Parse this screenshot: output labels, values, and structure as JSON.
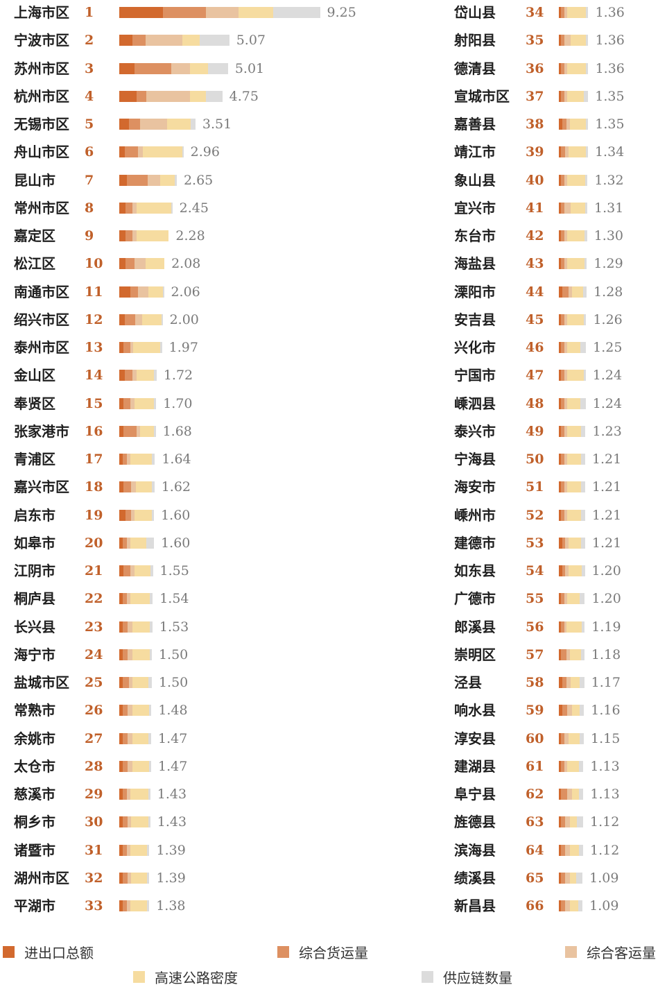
{
  "chart_data": {
    "type": "bar",
    "orientation": "horizontal",
    "stacked": true,
    "legend_position": "bottom",
    "series": [
      {
        "name": "进出口总额",
        "color": "#d2692e"
      },
      {
        "name": "综合货运量",
        "color": "#dd9061"
      },
      {
        "name": "综合客运量",
        "color": "#e9c3a0"
      },
      {
        "name": "高速公路密度",
        "color": "#f6dca0"
      },
      {
        "name": "供应链数量",
        "color": "#dcdcdc"
      }
    ],
    "rows": [
      {
        "rank": "1",
        "name": "上海市区",
        "total": "9.25",
        "parts": [
          2.0,
          2.0,
          1.5,
          1.6,
          2.15
        ]
      },
      {
        "rank": "2",
        "name": "宁波市区",
        "total": "5.07",
        "parts": [
          0.6,
          0.6,
          1.7,
          0.8,
          1.37
        ]
      },
      {
        "rank": "3",
        "name": "苏州市区",
        "total": "5.01",
        "parts": [
          0.7,
          1.7,
          0.85,
          0.85,
          0.91
        ]
      },
      {
        "rank": "4",
        "name": "杭州市区",
        "total": "4.75",
        "parts": [
          0.8,
          0.45,
          2.0,
          0.75,
          0.75
        ]
      },
      {
        "rank": "5",
        "name": "无锡市区",
        "total": "3.51",
        "parts": [
          0.45,
          0.5,
          1.25,
          1.1,
          0.21
        ]
      },
      {
        "rank": "6",
        "name": "舟山市区",
        "total": "2.96",
        "parts": [
          0.25,
          0.6,
          0.25,
          1.8,
          0.06
        ]
      },
      {
        "rank": "7",
        "name": "昆山市",
        "total": "2.65",
        "parts": [
          0.35,
          0.95,
          0.6,
          0.65,
          0.1
        ]
      },
      {
        "rank": "8",
        "name": "常州市区",
        "total": "2.45",
        "parts": [
          0.3,
          0.3,
          0.2,
          1.6,
          0.05
        ]
      },
      {
        "rank": "9",
        "name": "嘉定区",
        "total": "2.28",
        "parts": [
          0.3,
          0.3,
          0.2,
          1.48,
          0.0
        ]
      },
      {
        "rank": "10",
        "name": "松江区",
        "total": "2.08",
        "parts": [
          0.3,
          0.4,
          0.5,
          0.88,
          0.0
        ]
      },
      {
        "rank": "11",
        "name": "南通市区",
        "total": "2.06",
        "parts": [
          0.5,
          0.35,
          0.5,
          0.65,
          0.06
        ]
      },
      {
        "rank": "12",
        "name": "绍兴市区",
        "total": "2.00",
        "parts": [
          0.25,
          0.5,
          0.3,
          0.9,
          0.05
        ]
      },
      {
        "rank": "13",
        "name": "泰州市区",
        "total": "1.97",
        "parts": [
          0.2,
          0.3,
          0.15,
          1.25,
          0.07
        ]
      },
      {
        "rank": "14",
        "name": "金山区",
        "total": "1.72",
        "parts": [
          0.25,
          0.35,
          0.2,
          0.8,
          0.12
        ]
      },
      {
        "rank": "15",
        "name": "奉贤区",
        "total": "1.70",
        "parts": [
          0.2,
          0.3,
          0.2,
          0.9,
          0.1
        ]
      },
      {
        "rank": "16",
        "name": "张家港市",
        "total": "1.68",
        "parts": [
          0.2,
          0.6,
          0.15,
          0.65,
          0.08
        ]
      },
      {
        "rank": "17",
        "name": "青浦区",
        "total": "1.64",
        "parts": [
          0.15,
          0.2,
          0.15,
          1.0,
          0.14
        ]
      },
      {
        "rank": "18",
        "name": "嘉兴市区",
        "total": "1.62",
        "parts": [
          0.2,
          0.35,
          0.2,
          0.75,
          0.12
        ]
      },
      {
        "rank": "19",
        "name": "启东市",
        "total": "1.60",
        "parts": [
          0.3,
          0.25,
          0.15,
          0.8,
          0.1
        ]
      },
      {
        "rank": "20",
        "name": "如皋市",
        "total": "1.60",
        "parts": [
          0.15,
          0.2,
          0.15,
          0.75,
          0.35
        ]
      },
      {
        "rank": "21",
        "name": "江阴市",
        "total": "1.55",
        "parts": [
          0.2,
          0.3,
          0.2,
          0.75,
          0.1
        ]
      },
      {
        "rank": "22",
        "name": "桐庐县",
        "total": "1.54",
        "parts": [
          0.15,
          0.2,
          0.15,
          0.9,
          0.14
        ]
      },
      {
        "rank": "23",
        "name": "长兴县",
        "total": "1.53",
        "parts": [
          0.15,
          0.25,
          0.2,
          0.8,
          0.13
        ]
      },
      {
        "rank": "24",
        "name": "海宁市",
        "total": "1.50",
        "parts": [
          0.15,
          0.25,
          0.2,
          0.8,
          0.1
        ]
      },
      {
        "rank": "25",
        "name": "盐城市区",
        "total": "1.50",
        "parts": [
          0.15,
          0.3,
          0.15,
          0.75,
          0.15
        ]
      },
      {
        "rank": "26",
        "name": "常熟市",
        "total": "1.48",
        "parts": [
          0.15,
          0.25,
          0.2,
          0.78,
          0.1
        ]
      },
      {
        "rank": "27",
        "name": "余姚市",
        "total": "1.47",
        "parts": [
          0.15,
          0.25,
          0.2,
          0.75,
          0.12
        ]
      },
      {
        "rank": "28",
        "name": "太仓市",
        "total": "1.47",
        "parts": [
          0.15,
          0.25,
          0.2,
          0.77,
          0.1
        ]
      },
      {
        "rank": "29",
        "name": "慈溪市",
        "total": "1.43",
        "parts": [
          0.15,
          0.2,
          0.15,
          0.85,
          0.08
        ]
      },
      {
        "rank": "30",
        "name": "桐乡市",
        "total": "1.43",
        "parts": [
          0.15,
          0.25,
          0.15,
          0.78,
          0.1
        ]
      },
      {
        "rank": "31",
        "name": "诸暨市",
        "total": "1.39",
        "parts": [
          0.15,
          0.2,
          0.15,
          0.79,
          0.1
        ]
      },
      {
        "rank": "32",
        "name": "湖州市区",
        "total": "1.39",
        "parts": [
          0.15,
          0.25,
          0.15,
          0.74,
          0.1
        ]
      },
      {
        "rank": "33",
        "name": "平湖市",
        "total": "1.38",
        "parts": [
          0.15,
          0.2,
          0.15,
          0.78,
          0.1
        ]
      },
      {
        "rank": "34",
        "name": "岱山县",
        "total": "1.36",
        "parts": [
          0.1,
          0.15,
          0.15,
          0.86,
          0.1
        ]
      },
      {
        "rank": "35",
        "name": "射阳县",
        "total": "1.36",
        "parts": [
          0.1,
          0.15,
          0.3,
          0.71,
          0.1
        ]
      },
      {
        "rank": "36",
        "name": "德清县",
        "total": "1.36",
        "parts": [
          0.1,
          0.15,
          0.15,
          0.86,
          0.1
        ]
      },
      {
        "rank": "37",
        "name": "宣城市区",
        "total": "1.35",
        "parts": [
          0.1,
          0.15,
          0.15,
          0.75,
          0.2
        ]
      },
      {
        "rank": "38",
        "name": "嘉善县",
        "total": "1.35",
        "parts": [
          0.15,
          0.2,
          0.15,
          0.75,
          0.1
        ]
      },
      {
        "rank": "39",
        "name": "靖江市",
        "total": "1.34",
        "parts": [
          0.1,
          0.2,
          0.15,
          0.79,
          0.1
        ]
      },
      {
        "rank": "40",
        "name": "象山县",
        "total": "1.32",
        "parts": [
          0.1,
          0.15,
          0.15,
          0.82,
          0.1
        ]
      },
      {
        "rank": "41",
        "name": "宜兴市",
        "total": "1.31",
        "parts": [
          0.1,
          0.15,
          0.3,
          0.66,
          0.1
        ]
      },
      {
        "rank": "42",
        "name": "东台市",
        "total": "1.30",
        "parts": [
          0.1,
          0.15,
          0.15,
          0.8,
          0.1
        ]
      },
      {
        "rank": "43",
        "name": "海盐县",
        "total": "1.29",
        "parts": [
          0.1,
          0.15,
          0.15,
          0.79,
          0.1
        ]
      },
      {
        "rank": "44",
        "name": "溧阳市",
        "total": "1.28",
        "parts": [
          0.15,
          0.3,
          0.15,
          0.53,
          0.15
        ]
      },
      {
        "rank": "45",
        "name": "安吉县",
        "total": "1.26",
        "parts": [
          0.1,
          0.15,
          0.15,
          0.76,
          0.1
        ]
      },
      {
        "rank": "46",
        "name": "兴化市",
        "total": "1.25",
        "parts": [
          0.1,
          0.15,
          0.15,
          0.6,
          0.25
        ]
      },
      {
        "rank": "47",
        "name": "宁国市",
        "total": "1.24",
        "parts": [
          0.1,
          0.15,
          0.15,
          0.74,
          0.1
        ]
      },
      {
        "rank": "48",
        "name": "嵊泗县",
        "total": "1.24",
        "parts": [
          0.1,
          0.15,
          0.15,
          0.59,
          0.25
        ]
      },
      {
        "rank": "49",
        "name": "泰兴市",
        "total": "1.23",
        "parts": [
          0.1,
          0.15,
          0.15,
          0.63,
          0.2
        ]
      },
      {
        "rank": "50",
        "name": "宁海县",
        "total": "1.21",
        "parts": [
          0.1,
          0.15,
          0.15,
          0.61,
          0.2
        ]
      },
      {
        "rank": "51",
        "name": "海安市",
        "total": "1.21",
        "parts": [
          0.1,
          0.15,
          0.15,
          0.61,
          0.2
        ]
      },
      {
        "rank": "52",
        "name": "嵊州市",
        "total": "1.21",
        "parts": [
          0.1,
          0.15,
          0.15,
          0.61,
          0.2
        ]
      },
      {
        "rank": "53",
        "name": "建德市",
        "total": "1.21",
        "parts": [
          0.15,
          0.15,
          0.15,
          0.56,
          0.2
        ]
      },
      {
        "rank": "54",
        "name": "如东县",
        "total": "1.20",
        "parts": [
          0.15,
          0.15,
          0.15,
          0.6,
          0.15
        ]
      },
      {
        "rank": "55",
        "name": "广德市",
        "total": "1.20",
        "parts": [
          0.1,
          0.15,
          0.15,
          0.55,
          0.25
        ]
      },
      {
        "rank": "56",
        "name": "郎溪县",
        "total": "1.19",
        "parts": [
          0.1,
          0.15,
          0.1,
          0.7,
          0.14
        ]
      },
      {
        "rank": "57",
        "name": "崇明区",
        "total": "1.18",
        "parts": [
          0.1,
          0.25,
          0.15,
          0.53,
          0.15
        ]
      },
      {
        "rank": "58",
        "name": "泾县",
        "total": "1.17",
        "parts": [
          0.15,
          0.2,
          0.2,
          0.42,
          0.2
        ]
      },
      {
        "rank": "59",
        "name": "响水县",
        "total": "1.16",
        "parts": [
          0.15,
          0.25,
          0.2,
          0.36,
          0.2
        ]
      },
      {
        "rank": "60",
        "name": "淳安县",
        "total": "1.15",
        "parts": [
          0.1,
          0.15,
          0.2,
          0.5,
          0.2
        ]
      },
      {
        "rank": "61",
        "name": "建湖县",
        "total": "1.13",
        "parts": [
          0.1,
          0.15,
          0.15,
          0.53,
          0.2
        ]
      },
      {
        "rank": "62",
        "name": "阜宁县",
        "total": "1.13",
        "parts": [
          0.1,
          0.3,
          0.2,
          0.33,
          0.2
        ]
      },
      {
        "rank": "63",
        "name": "旌德县",
        "total": "1.12",
        "parts": [
          0.1,
          0.2,
          0.2,
          0.32,
          0.3
        ]
      },
      {
        "rank": "64",
        "name": "滨海县",
        "total": "1.12",
        "parts": [
          0.1,
          0.2,
          0.2,
          0.42,
          0.2
        ]
      },
      {
        "rank": "65",
        "name": "绩溪县",
        "total": "1.09",
        "parts": [
          0.1,
          0.2,
          0.2,
          0.29,
          0.3
        ]
      },
      {
        "rank": "66",
        "name": "新昌县",
        "total": "1.09",
        "parts": [
          0.1,
          0.2,
          0.2,
          0.39,
          0.2
        ]
      }
    ]
  }
}
